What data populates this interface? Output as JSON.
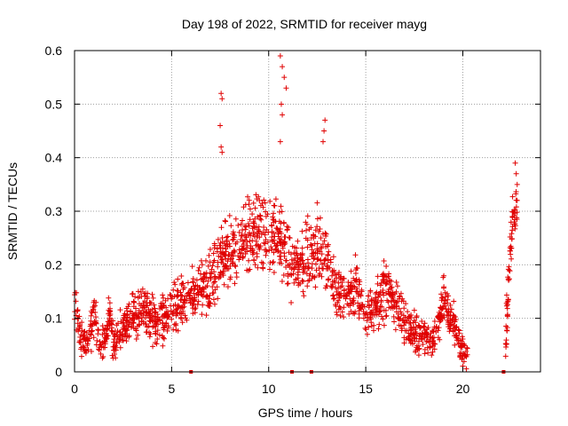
{
  "chart_data": {
    "type": "scatter",
    "title": "Day 198 of 2022, SRMTID for receiver mayg",
    "xlabel": "GPS time / hours",
    "ylabel": "SRMTID / TECUs",
    "xlim": [
      0,
      24
    ],
    "ylim": [
      0,
      0.6
    ],
    "xticks": [
      "0",
      "5",
      "10",
      "15",
      "20"
    ],
    "xtick_values": [
      0,
      5,
      10,
      15,
      20
    ],
    "yticks": [
      "0",
      "0.1",
      "0.2",
      "0.3",
      "0.4",
      "0.5",
      "0.6"
    ],
    "ytick_values": [
      0,
      0.1,
      0.2,
      0.3,
      0.4,
      0.5,
      0.6
    ],
    "grid": true,
    "marker": "plus",
    "color": "#e00000",
    "trend": [
      [
        0.0,
        0.16
      ],
      [
        0.3,
        0.06
      ],
      [
        0.7,
        0.05
      ],
      [
        1.0,
        0.11
      ],
      [
        1.3,
        0.05
      ],
      [
        1.6,
        0.06
      ],
      [
        1.8,
        0.12
      ],
      [
        2.0,
        0.05
      ],
      [
        2.5,
        0.08
      ],
      [
        3.0,
        0.1
      ],
      [
        3.5,
        0.11
      ],
      [
        4.0,
        0.1
      ],
      [
        4.5,
        0.09
      ],
      [
        5.0,
        0.12
      ],
      [
        5.5,
        0.13
      ],
      [
        6.0,
        0.14
      ],
      [
        6.5,
        0.16
      ],
      [
        7.0,
        0.17
      ],
      [
        7.5,
        0.21
      ],
      [
        8.0,
        0.23
      ],
      [
        8.5,
        0.23
      ],
      [
        9.0,
        0.25
      ],
      [
        9.5,
        0.26
      ],
      [
        10.0,
        0.25
      ],
      [
        10.5,
        0.25
      ],
      [
        11.0,
        0.21
      ],
      [
        11.5,
        0.2
      ],
      [
        12.0,
        0.21
      ],
      [
        12.5,
        0.24
      ],
      [
        13.0,
        0.2
      ],
      [
        13.5,
        0.16
      ],
      [
        14.0,
        0.13
      ],
      [
        14.5,
        0.17
      ],
      [
        15.0,
        0.1
      ],
      [
        15.5,
        0.12
      ],
      [
        16.0,
        0.15
      ],
      [
        16.5,
        0.13
      ],
      [
        17.0,
        0.1
      ],
      [
        17.5,
        0.07
      ],
      [
        18.0,
        0.06
      ],
      [
        18.5,
        0.06
      ],
      [
        19.0,
        0.13
      ],
      [
        19.5,
        0.09
      ],
      [
        20.0,
        0.04
      ],
      [
        20.3,
        0.02
      ]
    ],
    "late_segment": [
      [
        22.2,
        0.05
      ],
      [
        22.4,
        0.2
      ],
      [
        22.6,
        0.3
      ],
      [
        22.8,
        0.3
      ]
    ],
    "outliers": [
      [
        7.55,
        0.52
      ],
      [
        7.6,
        0.51
      ],
      [
        7.5,
        0.46
      ],
      [
        7.55,
        0.42
      ],
      [
        7.6,
        0.41
      ],
      [
        10.6,
        0.59
      ],
      [
        10.7,
        0.57
      ],
      [
        10.8,
        0.55
      ],
      [
        10.9,
        0.53
      ],
      [
        10.65,
        0.5
      ],
      [
        10.7,
        0.48
      ],
      [
        10.6,
        0.43
      ],
      [
        12.9,
        0.47
      ],
      [
        12.85,
        0.45
      ],
      [
        12.8,
        0.43
      ],
      [
        22.7,
        0.39
      ],
      [
        22.75,
        0.37
      ],
      [
        22.8,
        0.35
      ]
    ],
    "zero_markers": [
      6.0,
      11.2,
      12.2,
      22.1
    ]
  }
}
